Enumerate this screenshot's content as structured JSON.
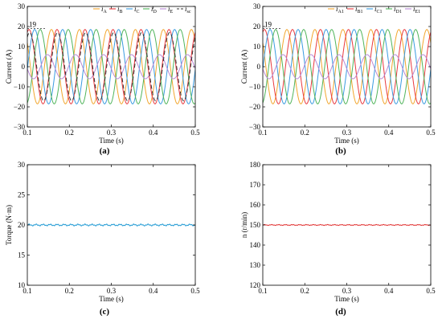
{
  "figure": {
    "panels": [
      "(a)",
      "(b)",
      "(c)",
      "(d)"
    ]
  },
  "colors": {
    "A": "#f2a62d",
    "B": "#e8383d",
    "C": "#3a9be0",
    "D": "#4fb45a",
    "E": "#b98ad4",
    "sc": "#333333",
    "torque": "#2b9fd6",
    "speed": "#e23a3a"
  },
  "chart_data": [
    {
      "id": "a",
      "type": "line",
      "xlabel": "Time (s)",
      "ylabel": "Current (A)",
      "xlim": [
        0.1,
        0.5
      ],
      "ylim": [
        -30,
        30
      ],
      "xticks": [
        "0.1",
        "0.2",
        "0.3",
        "0.4",
        "0.5"
      ],
      "yticks": [
        "−30",
        "−20",
        "−10",
        "0",
        "10",
        "20",
        "30"
      ],
      "annotation": "19",
      "legend": [
        {
          "label": "iA",
          "main": "i",
          "sub": "A",
          "color_key": "A",
          "dashed": false
        },
        {
          "label": "iB",
          "main": "i",
          "sub": "B",
          "color_key": "B",
          "dashed": false
        },
        {
          "label": "iC",
          "main": "i",
          "sub": "C",
          "color_key": "C",
          "dashed": false
        },
        {
          "label": "iD",
          "main": "i",
          "sub": "D",
          "color_key": "D",
          "dashed": false
        },
        {
          "label": "iE",
          "main": "i",
          "sub": "E",
          "color_key": "E",
          "dashed": false
        },
        {
          "label": "isc",
          "main": "i",
          "sub": "sc",
          "color_key": "sc",
          "dashed": true
        }
      ],
      "series": [
        {
          "name": "iA",
          "color_key": "A",
          "amplitude": 18.5,
          "frequency_hz": 15,
          "phase_deg": -40,
          "dashed": false
        },
        {
          "name": "iB",
          "color_key": "B",
          "amplitude": 18.5,
          "frequency_hz": 15,
          "phase_deg": -112,
          "dashed": false
        },
        {
          "name": "iC",
          "color_key": "C",
          "amplitude": 18.5,
          "frequency_hz": 15,
          "phase_deg": -184,
          "dashed": false
        },
        {
          "name": "iD",
          "color_key": "D",
          "amplitude": 18.5,
          "frequency_hz": 15,
          "phase_deg": -256,
          "dashed": false
        },
        {
          "name": "iE",
          "color_key": "E",
          "amplitude": 6,
          "frequency_hz": 15,
          "phase_deg": -350,
          "dashed": false
        },
        {
          "name": "isc",
          "color_key": "sc",
          "amplitude": 17,
          "frequency_hz": 15,
          "phase_deg": -120,
          "dashed": true
        }
      ]
    },
    {
      "id": "b",
      "type": "line",
      "xlabel": "Time (s)",
      "ylabel": "Current (A)",
      "xlim": [
        0.1,
        0.5
      ],
      "ylim": [
        -30,
        30
      ],
      "xticks": [
        "0.1",
        "0.2",
        "0.3",
        "0.4",
        "0.5"
      ],
      "yticks": [
        "−30",
        "−20",
        "−10",
        "0",
        "10",
        "20",
        "30"
      ],
      "annotation": "19",
      "legend": [
        {
          "label": "iA1",
          "main": "i",
          "sub": "A1",
          "color_key": "A",
          "dashed": false
        },
        {
          "label": "iB1",
          "main": "i",
          "sub": "B1",
          "color_key": "B",
          "dashed": false
        },
        {
          "label": "iC1",
          "main": "i",
          "sub": "C1",
          "color_key": "C",
          "dashed": false
        },
        {
          "label": "iD1",
          "main": "i",
          "sub": "D1",
          "color_key": "D",
          "dashed": false
        },
        {
          "label": "iE1",
          "main": "i",
          "sub": "E1",
          "color_key": "E",
          "dashed": false
        }
      ],
      "series": [
        {
          "name": "iA1",
          "color_key": "A",
          "amplitude": 18.5,
          "frequency_hz": 15,
          "phase_deg": -40,
          "dashed": false
        },
        {
          "name": "iB1",
          "color_key": "B",
          "amplitude": 18.5,
          "frequency_hz": 15,
          "phase_deg": -112,
          "dashed": false
        },
        {
          "name": "iC1",
          "color_key": "C",
          "amplitude": 18.5,
          "frequency_hz": 15,
          "phase_deg": -184,
          "dashed": false
        },
        {
          "name": "iD1",
          "color_key": "D",
          "amplitude": 18.5,
          "frequency_hz": 15,
          "phase_deg": -256,
          "dashed": false
        },
        {
          "name": "iE1",
          "color_key": "E",
          "amplitude": 6,
          "frequency_hz": 15,
          "phase_deg": -350,
          "dashed": false
        }
      ]
    },
    {
      "id": "c",
      "type": "line",
      "xlabel": "Time (s)",
      "ylabel": "Torque (N·m)",
      "xlim": [
        0.1,
        0.5
      ],
      "ylim": [
        10,
        30
      ],
      "xticks": [
        "0.1",
        "0.2",
        "0.3",
        "0.4",
        "0.5"
      ],
      "yticks": [
        "10",
        "15",
        "20",
        "25",
        "30"
      ],
      "series": [
        {
          "name": "",
          "color_key": "torque",
          "constant": 20,
          "ripple": 0.1
        }
      ]
    },
    {
      "id": "d",
      "type": "line",
      "xlabel": "Time (s)",
      "ylabel": "n (r/min)",
      "xlim": [
        0.1,
        0.5
      ],
      "ylim": [
        120,
        180
      ],
      "xticks": [
        "0.1",
        "0.2",
        "0.3",
        "0.4",
        "0.5"
      ],
      "yticks": [
        "120",
        "130",
        "140",
        "150",
        "160",
        "170",
        "180"
      ],
      "series": [
        {
          "name": "",
          "color_key": "speed",
          "constant": 150,
          "ripple": 0.15
        }
      ]
    }
  ]
}
